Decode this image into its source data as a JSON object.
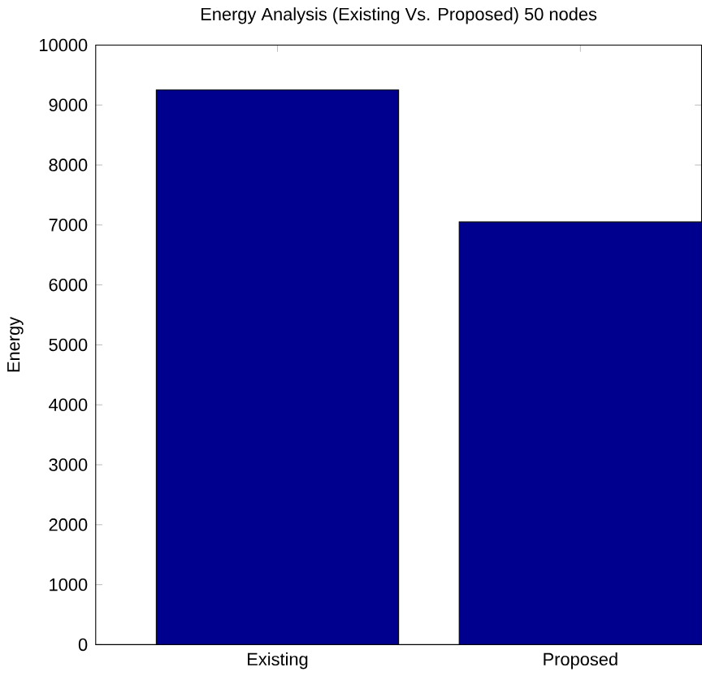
{
  "chart_data": {
    "type": "bar",
    "title": "Energy Analysis (Existing Vs. Proposed) 50 nodes",
    "ylabel": "Energy",
    "categories": [
      "Existing",
      "Proposed"
    ],
    "values": [
      9250,
      7050
    ],
    "color": "#00008f",
    "ylim": [
      0,
      10000
    ],
    "yticks": [
      0,
      1000,
      2000,
      3000,
      4000,
      5000,
      6000,
      7000,
      8000,
      9000,
      10000
    ]
  }
}
